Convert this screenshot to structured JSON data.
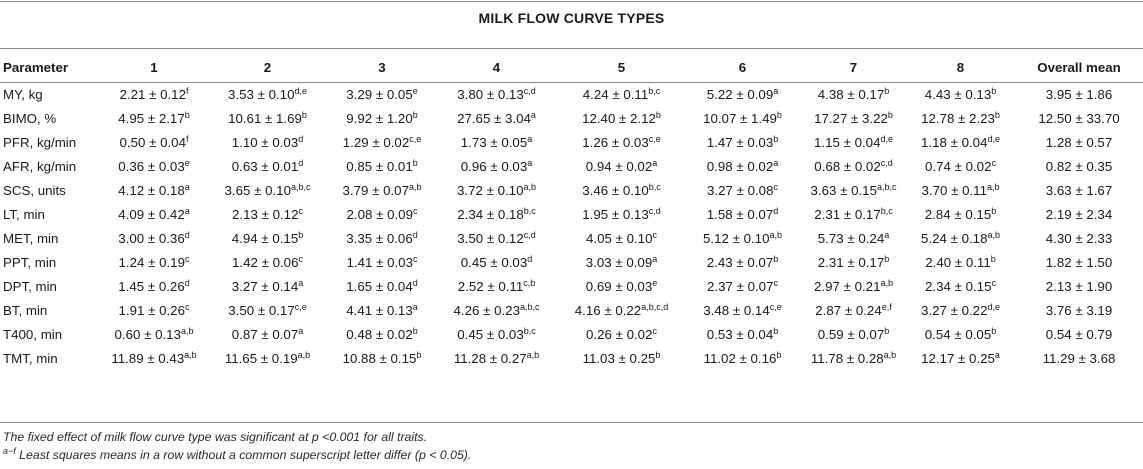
{
  "table": {
    "title": "MILK FLOW CURVE TYPES",
    "headers": [
      "Parameter",
      "1",
      "2",
      "3",
      "4",
      "5",
      "6",
      "7",
      "8",
      "Overall mean"
    ],
    "rows": [
      {
        "param": "MY, kg",
        "cells": [
          [
            "2.21 ± 0.12",
            "f"
          ],
          [
            "3.53 ± 0.10",
            "d,e"
          ],
          [
            "3.29 ± 0.05",
            "e"
          ],
          [
            "3.80 ± 0.13",
            "c,d"
          ],
          [
            "4.24 ± 0.11",
            "b,c"
          ],
          [
            "5.22 ± 0.09",
            "a"
          ],
          [
            "4.38 ± 0.17",
            "b"
          ],
          [
            "4.43 ± 0.13",
            "b"
          ],
          [
            "3.95 ± 1.86",
            ""
          ]
        ]
      },
      {
        "param": "BIMO, %",
        "cells": [
          [
            "4.95 ± 2.17",
            "b"
          ],
          [
            "10.61 ± 1.69",
            "b"
          ],
          [
            "9.92 ± 1.20",
            "b"
          ],
          [
            "27.65 ± 3.04",
            "a"
          ],
          [
            "12.40 ± 2.12",
            "b"
          ],
          [
            "10.07 ± 1.49",
            "b"
          ],
          [
            "17.27 ± 3.22",
            "b"
          ],
          [
            "12.78 ± 2.23",
            "b"
          ],
          [
            "12.50 ± 33.70",
            ""
          ]
        ]
      },
      {
        "param": "PFR, kg/min",
        "cells": [
          [
            "0.50 ± 0.04",
            "f"
          ],
          [
            "1.10 ± 0.03",
            "d"
          ],
          [
            "1.29 ± 0.02",
            "c,e"
          ],
          [
            "1.73 ± 0.05",
            "a"
          ],
          [
            "1.26 ± 0.03",
            "c,e"
          ],
          [
            "1.47 ± 0.03",
            "b"
          ],
          [
            "1.15 ± 0.04",
            "d,e"
          ],
          [
            "1.18 ± 0.04",
            "d,e"
          ],
          [
            "1.28 ± 0.57",
            ""
          ]
        ]
      },
      {
        "param": "AFR, kg/min",
        "cells": [
          [
            "0.36 ± 0.03",
            "e"
          ],
          [
            "0.63 ± 0.01",
            "d"
          ],
          [
            "0.85 ± 0.01",
            "b"
          ],
          [
            "0.96 ± 0.03",
            "a"
          ],
          [
            "0.94 ± 0.02",
            "a"
          ],
          [
            "0.98 ± 0.02",
            "a"
          ],
          [
            "0.68 ± 0.02",
            "c,d"
          ],
          [
            "0.74 ± 0.02",
            "c"
          ],
          [
            "0.82 ± 0.35",
            ""
          ]
        ]
      },
      {
        "param": "SCS, units",
        "cells": [
          [
            "4.12 ± 0.18",
            "a"
          ],
          [
            "3.65 ± 0.10",
            "a,b,c"
          ],
          [
            "3.79 ± 0.07",
            "a,b"
          ],
          [
            "3.72 ± 0.10",
            "a,b"
          ],
          [
            "3.46 ± 0.10",
            "b,c"
          ],
          [
            "3.27 ± 0.08",
            "c"
          ],
          [
            "3.63 ± 0.15",
            "a,b,c"
          ],
          [
            "3.70 ± 0.11",
            "a,b"
          ],
          [
            "3.63 ± 1.67",
            ""
          ]
        ]
      },
      {
        "param": "LT, min",
        "cells": [
          [
            "4.09 ± 0.42",
            "a"
          ],
          [
            "2.13 ± 0.12",
            "c"
          ],
          [
            "2.08 ± 0.09",
            "c"
          ],
          [
            "2.34 ± 0.18",
            "b,c"
          ],
          [
            "1.95 ± 0.13",
            "c,d"
          ],
          [
            "1.58 ± 0.07",
            "d"
          ],
          [
            "2.31 ± 0.17",
            "b,c"
          ],
          [
            "2.84 ± 0.15",
            "b"
          ],
          [
            "2.19 ± 2.34",
            ""
          ]
        ]
      },
      {
        "param": "MET, min",
        "cells": [
          [
            "3.00 ± 0.36",
            "d"
          ],
          [
            "4.94 ± 0.15",
            "b"
          ],
          [
            "3.35 ± 0.06",
            "d"
          ],
          [
            "3.50 ± 0.12",
            "c,d"
          ],
          [
            "4.05 ± 0.10",
            "c"
          ],
          [
            "5.12 ± 0.10",
            "a,b"
          ],
          [
            "5.73 ± 0.24",
            "a"
          ],
          [
            "5.24 ± 0.18",
            "a,b"
          ],
          [
            "4.30 ± 2.33",
            ""
          ]
        ]
      },
      {
        "param": "PPT, min",
        "cells": [
          [
            "1.24 ± 0.19",
            "c"
          ],
          [
            "1.42 ± 0.06",
            "c"
          ],
          [
            "1.41 ± 0.03",
            "c"
          ],
          [
            "0.45 ± 0.03",
            "d"
          ],
          [
            "3.03 ± 0.09",
            "a"
          ],
          [
            "2.43 ± 0.07",
            "b"
          ],
          [
            "2.31 ± 0.17",
            "b"
          ],
          [
            "2.40 ± 0.11",
            "b"
          ],
          [
            "1.82 ± 1.50",
            ""
          ]
        ]
      },
      {
        "param": "DPT, min",
        "cells": [
          [
            "1.45 ± 0.26",
            "d"
          ],
          [
            "3.27 ± 0.14",
            "a"
          ],
          [
            "1.65 ± 0.04",
            "d"
          ],
          [
            "2.52 ± 0.11",
            "c,b"
          ],
          [
            "0.69 ± 0.03",
            "e"
          ],
          [
            "2.37 ± 0.07",
            "c"
          ],
          [
            "2.97 ± 0.21",
            "a,b"
          ],
          [
            "2.34 ± 0.15",
            "c"
          ],
          [
            "2.13 ± 1.90",
            ""
          ]
        ]
      },
      {
        "param": "BT, min",
        "cells": [
          [
            "1.91 ± 0.26",
            "c"
          ],
          [
            "3.50 ± 0.17",
            "c,e"
          ],
          [
            "4.41 ± 0.13",
            "a"
          ],
          [
            "4.26 ± 0.23",
            "a,b,c"
          ],
          [
            "4.16 ± 0.22",
            "a,b,c,d"
          ],
          [
            "3.48 ± 0.14",
            "c,e"
          ],
          [
            "2.87 ± 0.24",
            "e,f"
          ],
          [
            "3.27 ± 0.22",
            "d,e"
          ],
          [
            "3.76 ± 3.19",
            ""
          ]
        ]
      },
      {
        "param": "T400, min",
        "cells": [
          [
            "0.60 ± 0.13",
            "a,b"
          ],
          [
            "0.87 ± 0.07",
            "a"
          ],
          [
            "0.48 ± 0.02",
            "b"
          ],
          [
            "0.45 ± 0.03",
            "b,c"
          ],
          [
            "0.26 ± 0.02",
            "c"
          ],
          [
            "0.53 ± 0.04",
            "b"
          ],
          [
            "0.59 ± 0.07",
            "b"
          ],
          [
            "0.54 ± 0.05",
            "b"
          ],
          [
            "0.54 ± 0.79",
            ""
          ]
        ]
      },
      {
        "param": "TMT, min",
        "cells": [
          [
            "11.89 ± 0.43",
            "a,b"
          ],
          [
            "11.65 ± 0.19",
            "a,b"
          ],
          [
            "10.88 ± 0.15",
            "b"
          ],
          [
            "11.28 ± 0.27",
            "a,b"
          ],
          [
            "11.03 ± 0.25",
            "b"
          ],
          [
            "11.02 ± 0.16",
            "b"
          ],
          [
            "11.78 ± 0.28",
            "a,b"
          ],
          [
            "12.17 ± 0.25",
            "a"
          ],
          [
            "11.29 ± 3.68",
            ""
          ]
        ]
      }
    ]
  },
  "footnotes": {
    "note1": "The fixed effect of milk flow curve type was significant at p <0.001 for all traits.",
    "note2_sup": "a−f",
    "note2": " Least squares means in a row without a common superscript letter differ (p < 0.05)."
  }
}
